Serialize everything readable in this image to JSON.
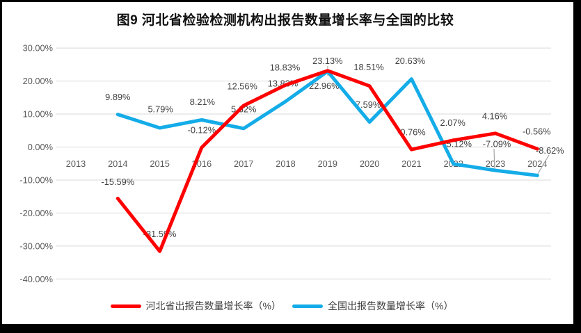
{
  "title": "图9 河北省检验检测机构出报告数量增长率与全国的比较",
  "chart_data": {
    "type": "line",
    "title": "图9 河北省检验检测机构出报告数量增长率与全国的比较",
    "categories": [
      "2013",
      "2014",
      "2015",
      "2016",
      "2017",
      "2018",
      "2019",
      "2020",
      "2021",
      "2022",
      "2023",
      "2024"
    ],
    "series": [
      {
        "name": "河北省出报告数量增长率（%）",
        "color": "#FF0000",
        "values": [
          null,
          -15.59,
          -31.59,
          -0.12,
          12.56,
          18.83,
          23.13,
          18.51,
          -0.76,
          2.07,
          4.16,
          -0.56
        ],
        "labels": [
          null,
          "-15.59%",
          "-31.59%",
          "-0.12%",
          "12.56%",
          "18.83%",
          "23.13%",
          "18.51%",
          "-0.76%",
          "2.07%",
          "4.16%",
          "-0.56%"
        ]
      },
      {
        "name": "全国出报告数量增长率（%）",
        "color": "#14ACE8",
        "values": [
          null,
          9.89,
          5.79,
          8.21,
          5.62,
          13.83,
          22.96,
          7.59,
          20.63,
          -5.12,
          -7.09,
          -8.62
        ],
        "labels": [
          null,
          "9.89%",
          "5.79%",
          "8.21%",
          "5.62%",
          "13.83%",
          "22.96%",
          "7.59%",
          "20.63%",
          "-5.12%",
          "-7.09%",
          "-8.62%"
        ]
      }
    ],
    "ylim": [
      -40,
      30
    ],
    "yticks": [
      "30.00%",
      "20.00%",
      "10.00%",
      "0.00%",
      "-10.00%",
      "-20.00%",
      "-30.00%",
      "-40.00%"
    ],
    "ytick_values": [
      30,
      20,
      10,
      0,
      -10,
      -20,
      -30,
      -40
    ],
    "grid": true,
    "legend_position": "bottom",
    "colors": {
      "gridline": "#D9D9D9",
      "tick_text": "#595959",
      "data_label_text": "#404040",
      "leader_line": "#A6A6A6"
    }
  }
}
